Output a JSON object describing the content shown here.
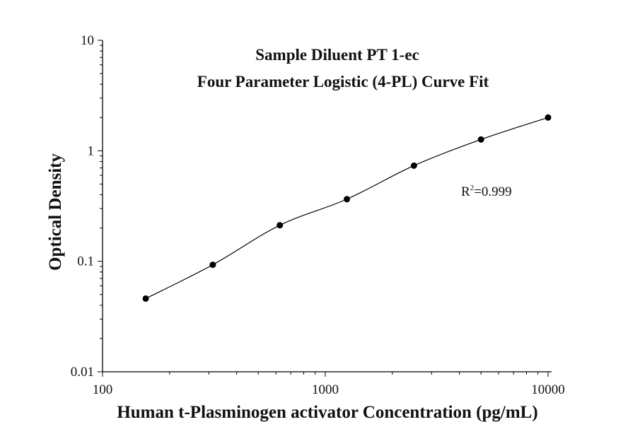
{
  "chart_data": {
    "type": "scatter",
    "title": "Sample Diluent PT 1-ec",
    "subtitle": "Four Parameter Logistic (4-PL) Curve Fit",
    "xlabel": "Human t-Plasminogen activator Concentration (pg/mL)",
    "ylabel": "Optical Density",
    "xscale": "log",
    "yscale": "log",
    "xlim": [
      100,
      10000
    ],
    "ylim": [
      0.01,
      10
    ],
    "xticks": [
      "100",
      "1000",
      "10000"
    ],
    "yticks": [
      "0.01",
      "0.1",
      "1",
      "10"
    ],
    "grid": false,
    "series": [
      {
        "x": [
          156.25,
          312.5,
          625,
          1250,
          2500,
          5000,
          10000
        ],
        "y": [
          0.046,
          0.093,
          0.212,
          0.365,
          0.734,
          1.266,
          2.0
        ],
        "fit": "4-PL curve"
      }
    ],
    "annotation": {
      "r_label": "R",
      "r_sup": "2",
      "r_value": "=0.999"
    },
    "colors": {
      "points": "#000000",
      "line": "#000000"
    }
  }
}
